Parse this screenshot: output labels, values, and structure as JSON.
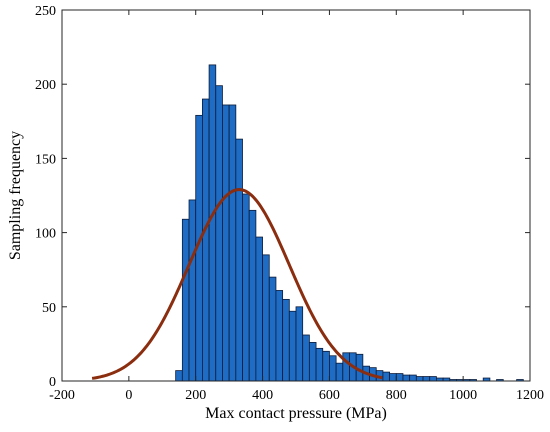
{
  "chart_data": {
    "type": "bar",
    "xlabel": "Max contact pressure (MPa)",
    "ylabel": "Sampling frequency",
    "xlim": [
      -200,
      1200
    ],
    "ylim": [
      0,
      250
    ],
    "xticks": [
      -200,
      0,
      200,
      400,
      600,
      800,
      1000,
      1200
    ],
    "yticks": [
      0,
      50,
      100,
      150,
      200,
      250
    ],
    "grid": false,
    "bin_width": 20,
    "bin_starts": [
      140,
      160,
      180,
      200,
      220,
      240,
      260,
      280,
      300,
      320,
      340,
      360,
      380,
      400,
      420,
      440,
      460,
      480,
      500,
      520,
      540,
      560,
      580,
      600,
      620,
      640,
      660,
      680,
      700,
      720,
      740,
      760,
      780,
      800,
      820,
      840,
      860,
      880,
      900,
      920,
      940,
      960,
      980,
      1000,
      1020,
      1040,
      1060,
      1080,
      1100,
      1120,
      1140,
      1160
    ],
    "values": [
      7,
      109,
      122,
      179,
      190,
      213,
      199,
      186,
      186,
      163,
      126,
      115,
      97,
      85,
      70,
      61,
      55,
      47,
      50,
      31,
      26,
      22,
      20,
      17,
      12,
      19,
      19,
      18,
      10,
      9,
      7,
      6,
      5,
      5,
      4,
      4,
      3,
      3,
      3,
      2,
      2,
      1,
      1,
      1,
      1,
      0,
      2,
      0,
      1,
      0,
      0,
      1
    ],
    "fit_curve": {
      "type": "normal",
      "mean": 330,
      "peak": 129,
      "sigma": 150,
      "x_range": [
        -110,
        760
      ]
    },
    "colors": {
      "bar_fill": "#1f6cc4",
      "bar_edge": "#0b1b3a",
      "curve": "#8b2d0f",
      "axis": "#262626"
    }
  }
}
